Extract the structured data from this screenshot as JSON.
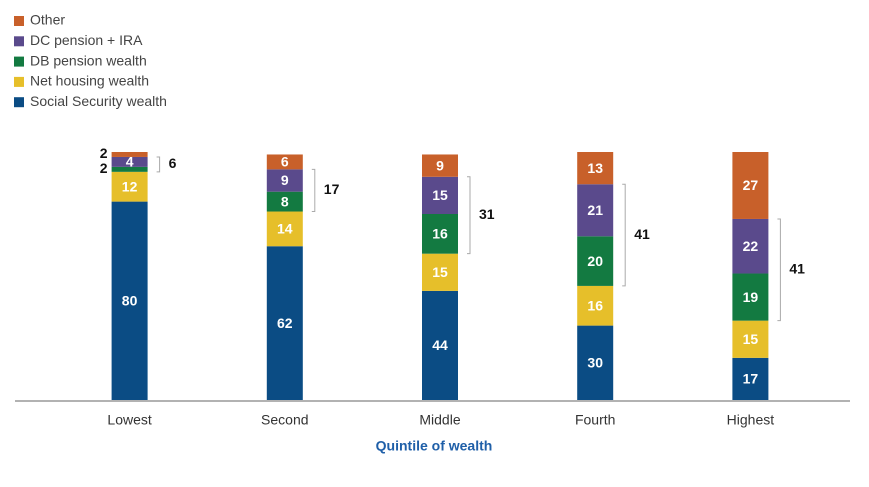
{
  "chart_data": {
    "type": "stacked_bar",
    "x_label": "Quintile of wealth",
    "categories": [
      "Lowest",
      "Second",
      "Middle",
      "Fourth",
      "Highest"
    ],
    "series": [
      {
        "name": "Social Security wealth",
        "color": "#0b4c84",
        "values": [
          80,
          62,
          44,
          30,
          17
        ]
      },
      {
        "name": "Net housing wealth",
        "color": "#e6bf2a",
        "values": [
          12,
          14,
          15,
          16,
          15
        ]
      },
      {
        "name": "DB pension wealth",
        "color": "#137a41",
        "values": [
          2,
          8,
          16,
          20,
          19
        ]
      },
      {
        "name": "DC pension + IRA",
        "color": "#5a4a8c",
        "values": [
          4,
          9,
          15,
          21,
          22
        ]
      },
      {
        "name": "Other",
        "color": "#c8602a",
        "values": [
          2,
          6,
          9,
          13,
          27
        ]
      }
    ],
    "bracket_values": [
      6,
      17,
      31,
      41,
      41
    ],
    "ylim": [
      0,
      100
    ]
  }
}
